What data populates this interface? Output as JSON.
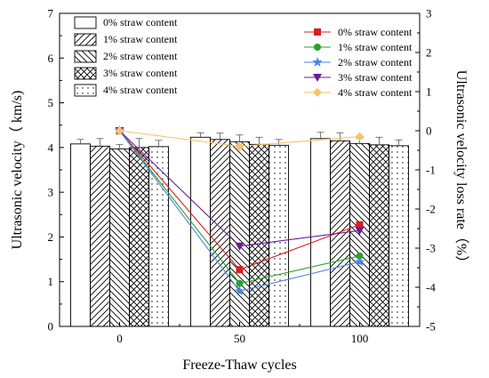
{
  "chart_data": {
    "type": "bar",
    "xlabel": "Freeze-Thaw cycles",
    "ylabel": "Ultrasonic velocity（ km/s)",
    "y2label": "Ultrasonic velocity loss rate（%）",
    "categories": [
      "0",
      "50",
      "100"
    ],
    "ylim": [
      0,
      7
    ],
    "yticks": [
      "0",
      "1",
      "2",
      "3",
      "4",
      "5",
      "6",
      "7"
    ],
    "y2lim": [
      -5,
      3
    ],
    "y2ticks": [
      "-5",
      "-4",
      "-3",
      "-2",
      "-1",
      "0",
      "1",
      "2",
      "3"
    ],
    "bar_series": [
      {
        "name": "0% straw content",
        "pattern": "blank",
        "values": [
          4.08,
          4.23,
          4.2
        ],
        "errors": [
          0.1,
          0.1,
          0.14
        ]
      },
      {
        "name": "1% straw content",
        "pattern": "forward-diagonal",
        "values": [
          4.03,
          4.18,
          4.15
        ],
        "errors": [
          0.17,
          0.14,
          0.18
        ]
      },
      {
        "name": "2% straw content",
        "pattern": "backward-diagonal",
        "values": [
          3.97,
          4.13,
          4.09
        ],
        "errors": [
          0.1,
          0.15,
          0.12
        ]
      },
      {
        "name": "3% straw content",
        "pattern": "crosshatch",
        "values": [
          4.0,
          4.07,
          4.06
        ],
        "errors": [
          0.2,
          0.16,
          0.17
        ]
      },
      {
        "name": "4% straw content",
        "pattern": "dots",
        "values": [
          4.02,
          4.05,
          4.04
        ],
        "errors": [
          0.14,
          0.13,
          0.13
        ]
      }
    ],
    "line_series": [
      {
        "name": "0% straw content",
        "color": "#d62020",
        "marker": "square",
        "values": [
          0,
          -3.55,
          -2.4
        ]
      },
      {
        "name": "1% straw content",
        "color": "#2ca02c",
        "marker": "circle",
        "values": [
          0,
          -3.9,
          -3.2
        ]
      },
      {
        "name": "2% straw content",
        "color": "#4a86e8",
        "marker": "star",
        "values": [
          0,
          -4.1,
          -3.35
        ]
      },
      {
        "name": "3% straw content",
        "color": "#6a1b9a",
        "marker": "triangle-down",
        "values": [
          0,
          -2.95,
          -2.55
        ]
      },
      {
        "name": "4% straw content",
        "color": "#f4c46a",
        "marker": "diamond",
        "values": [
          0,
          -0.4,
          -0.15
        ]
      }
    ],
    "legend_bars_placement": "top-left",
    "legend_lines_placement": "top-right",
    "grid": false
  }
}
